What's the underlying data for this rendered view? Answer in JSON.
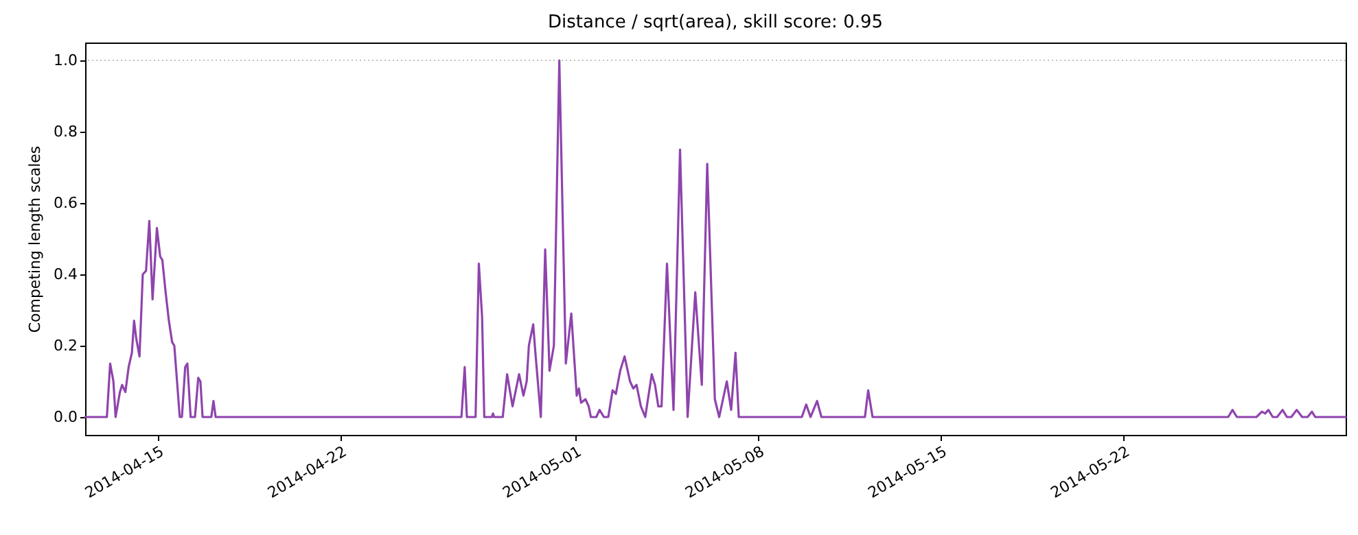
{
  "chart_data": {
    "type": "line",
    "title": "Distance / sqrt(area), skill score: 0.95",
    "ylabel": "Competing length scales",
    "xlim": [
      "2014-04-12T05:00",
      "2014-05-30T12:00"
    ],
    "xticks": [
      "2014-04-15",
      "2014-04-22",
      "2014-05-01",
      "2014-05-08",
      "2014-05-15",
      "2014-05-22"
    ],
    "ylim": [
      -0.05,
      1.05
    ],
    "yticks": [
      {
        "value": 0,
        "label": "0.0"
      },
      {
        "value": 0.2,
        "label": "0.2"
      },
      {
        "value": 0.4,
        "label": "0.4"
      },
      {
        "value": 0.6,
        "label": "0.6"
      },
      {
        "value": 0.8,
        "label": "0.8"
      },
      {
        "value": 1,
        "label": "1.0"
      }
    ],
    "ref_lines": [
      {
        "axis": "y",
        "value": 1,
        "color": "#b0b0b0",
        "line_style": "dotted"
      }
    ],
    "grid": false,
    "marker": "none",
    "line_style": "solid",
    "x": [
      "2014-04-12T05:00",
      "2014-04-13T01:00",
      "2014-04-13T04:00",
      "2014-04-13T07:00",
      "2014-04-13T09:00",
      "2014-04-13T13:00",
      "2014-04-13T15:00",
      "2014-04-13T18:00",
      "2014-04-13T21:00",
      "2014-04-14T00:00",
      "2014-04-14T02:00",
      "2014-04-14T04:00",
      "2014-04-14T07:00",
      "2014-04-14T10:00",
      "2014-04-14T13:00",
      "2014-04-14T16:00",
      "2014-04-14T19:00",
      "2014-04-14T23:00",
      "2014-04-15T02:00",
      "2014-04-15T04:00",
      "2014-04-15T07:00",
      "2014-04-15T10:00",
      "2014-04-15T13:00",
      "2014-04-15T15:00",
      "2014-04-15T20:00",
      "2014-04-15T22:00",
      "2014-04-16T01:00",
      "2014-04-16T03:00",
      "2014-04-16T06:00",
      "2014-04-16T10:00",
      "2014-04-16T13:00",
      "2014-04-16T15:00",
      "2014-04-16T17:00",
      "2014-04-17T01:00",
      "2014-04-17T03:00",
      "2014-04-17T05:00",
      "2014-04-26T15:00",
      "2014-04-26T18:00",
      "2014-04-26T20:00",
      "2014-04-27T04:00",
      "2014-04-27T07:00",
      "2014-04-27T10:00",
      "2014-04-27T12:00",
      "2014-04-27T19:00",
      "2014-04-27T20:00",
      "2014-04-27T21:00",
      "2014-04-28T05:00",
      "2014-04-28T09:00",
      "2014-04-28T14:00",
      "2014-04-28T20:00",
      "2014-04-29T00:00",
      "2014-04-29T03:00",
      "2014-04-29T05:00",
      "2014-04-29T09:00",
      "2014-04-29T11:00",
      "2014-04-29T16:00",
      "2014-04-29T20:00",
      "2014-04-30T00:00",
      "2014-04-30T04:00",
      "2014-04-30T09:00",
      "2014-04-30T15:00",
      "2014-04-30T20:00",
      "2014-05-01T01:00",
      "2014-05-01T03:00",
      "2014-05-01T05:00",
      "2014-05-01T09:00",
      "2014-05-01T12:00",
      "2014-05-01T14:00",
      "2014-05-01T19:00",
      "2014-05-01T22:00",
      "2014-05-02T02:00",
      "2014-05-02T06:00",
      "2014-05-02T10:00",
      "2014-05-02T13:00",
      "2014-05-02T17:00",
      "2014-05-02T21:00",
      "2014-05-03T02:00",
      "2014-05-03T05:00",
      "2014-05-03T08:00",
      "2014-05-03T12:00",
      "2014-05-03T16:00",
      "2014-05-03T22:00",
      "2014-05-04T01:00",
      "2014-05-04T04:00",
      "2014-05-04T07:00",
      "2014-05-04T12:00",
      "2014-05-04T18:00",
      "2014-05-05T00:00",
      "2014-05-05T07:00",
      "2014-05-05T14:00",
      "2014-05-05T20:00",
      "2014-05-06T01:00",
      "2014-05-06T08:00",
      "2014-05-06T12:00",
      "2014-05-06T19:00",
      "2014-05-06T23:00",
      "2014-05-07T03:00",
      "2014-05-07T06:00",
      "2014-05-09T16:00",
      "2014-05-09T20:00",
      "2014-05-10T00:00",
      "2014-05-10T06:00",
      "2014-05-10T10:00",
      "2014-05-12T02:00",
      "2014-05-12T05:00",
      "2014-05-12T09:00",
      "2014-05-26T00:00",
      "2014-05-26T04:00",
      "2014-05-26T08:00",
      "2014-05-27T02:00",
      "2014-05-27T07:00",
      "2014-05-27T10:00",
      "2014-05-27T13:00",
      "2014-05-27T17:00",
      "2014-05-27T21:00",
      "2014-05-28T02:00",
      "2014-05-28T06:00",
      "2014-05-28T10:00",
      "2014-05-28T15:00",
      "2014-05-28T20:00",
      "2014-05-29T01:00",
      "2014-05-29T05:00",
      "2014-05-29T08:00",
      "2014-05-30T12:00"
    ],
    "series": [
      {
        "color": "#8e44ad",
        "values": [
          0,
          0,
          0.15,
          0.1,
          0,
          0.07,
          0.09,
          0.07,
          0.14,
          0.18,
          0.27,
          0.22,
          0.17,
          0.4,
          0.41,
          0.55,
          0.33,
          0.53,
          0.45,
          0.44,
          0.35,
          0.27,
          0.21,
          0.2,
          0,
          0,
          0.14,
          0.15,
          0,
          0,
          0.11,
          0.1,
          0,
          0,
          0.045,
          0,
          0,
          0.14,
          0,
          0,
          0.43,
          0.28,
          0,
          0,
          0.01,
          0,
          0,
          0.12,
          0.03,
          0.12,
          0.06,
          0.1,
          0.2,
          0.26,
          0.18,
          0,
          0.47,
          0.13,
          0.2,
          1.0,
          0.15,
          0.29,
          0.06,
          0.08,
          0.04,
          0.05,
          0.03,
          0,
          0,
          0.02,
          0,
          0,
          0.075,
          0.065,
          0.13,
          0.17,
          0.1,
          0.08,
          0.09,
          0.03,
          0,
          0.12,
          0.09,
          0.03,
          0.03,
          0.43,
          0.02,
          0.75,
          0,
          0.35,
          0.09,
          0.71,
          0.05,
          0,
          0.1,
          0.02,
          0.18,
          0,
          0,
          0.035,
          0,
          0.045,
          0,
          0,
          0.075,
          0,
          0,
          0.02,
          0,
          0,
          0.015,
          0.01,
          0.02,
          0,
          0,
          0.02,
          0,
          0,
          0.02,
          0,
          0,
          0.015,
          0,
          0
        ]
      }
    ]
  }
}
